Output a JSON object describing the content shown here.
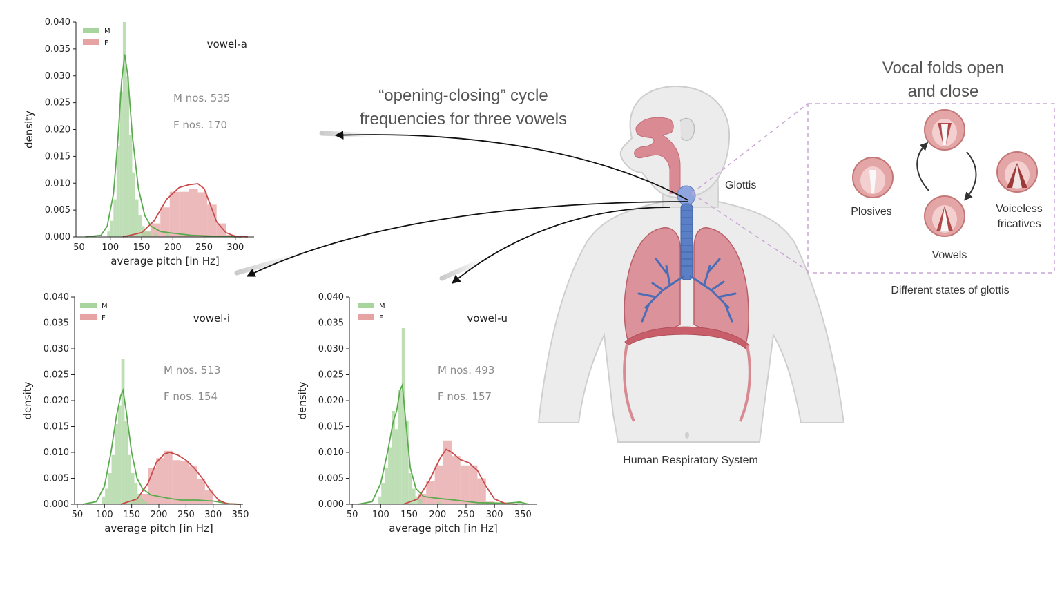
{
  "caption_cycle": [
    "“opening-closing” cycle",
    "frequencies for three vowels"
  ],
  "caption_folds": [
    "Vocal folds open",
    "and close"
  ],
  "labels": {
    "glottis": "Glottis",
    "system": "Human Respiratory System",
    "states_title": "Different states of glottis",
    "plosives": "Plosives",
    "vowels": "Vowels",
    "voiceless": [
      "Voiceless",
      "fricatives"
    ]
  },
  "colors": {
    "male": "#5aab4e",
    "female": "#c94a4a",
    "male_fill": "#a8d49e",
    "female_fill": "#e5a3a3",
    "body": "#e8e8e8",
    "airway": "#5b7fc4",
    "lung": "#cf6e78"
  },
  "chart_data": [
    {
      "type": "histogram+kde",
      "title": "vowel-a",
      "xlabel": "average pitch [in Hz]",
      "ylabel": "density",
      "xlim": [
        45,
        330
      ],
      "ylim": [
        0,
        0.04
      ],
      "xticks": [
        50,
        100,
        150,
        200,
        250,
        300
      ],
      "yticks": [
        "0.000",
        "0.005",
        "0.010",
        "0.015",
        "0.020",
        "0.025",
        "0.030",
        "0.035",
        "0.040"
      ],
      "legend": [
        "M",
        "F"
      ],
      "annotations": [
        "M nos. 535",
        "F nos. 170"
      ],
      "series": [
        {
          "name": "M",
          "bin_width": 5,
          "bins": [
            [
              95,
              0.001
            ],
            [
              100,
              0.003
            ],
            [
              105,
              0.007
            ],
            [
              110,
              0.017
            ],
            [
              115,
              0.027
            ],
            [
              120,
              0.04
            ],
            [
              125,
              0.03
            ],
            [
              130,
              0.019
            ],
            [
              135,
              0.012
            ],
            [
              140,
              0.007
            ],
            [
              145,
              0.004
            ],
            [
              150,
              0.002
            ],
            [
              155,
              0.001
            ],
            [
              160,
              0.001
            ],
            [
              170,
              0.0006
            ],
            [
              190,
              0.0008
            ],
            [
              210,
              0.0005
            ]
          ],
          "kde": [
            [
              60,
              0
            ],
            [
              85,
              0.0003
            ],
            [
              95,
              0.002
            ],
            [
              105,
              0.008
            ],
            [
              112,
              0.018
            ],
            [
              118,
              0.029
            ],
            [
              123,
              0.034
            ],
            [
              128,
              0.03
            ],
            [
              135,
              0.019
            ],
            [
              145,
              0.009
            ],
            [
              155,
              0.004
            ],
            [
              165,
              0.002
            ],
            [
              180,
              0.001
            ],
            [
              200,
              0.0007
            ],
            [
              230,
              0.0003
            ],
            [
              270,
              0.0001
            ],
            [
              310,
              0
            ]
          ]
        },
        {
          "name": "F",
          "bin_width": 15,
          "bins": [
            [
              150,
              0.001
            ],
            [
              165,
              0.0025
            ],
            [
              180,
              0.0055
            ],
            [
              195,
              0.0084
            ],
            [
              210,
              0.0084
            ],
            [
              225,
              0.009
            ],
            [
              240,
              0.0083
            ],
            [
              255,
              0.006
            ],
            [
              270,
              0.0025
            ],
            [
              285,
              0.0004
            ]
          ],
          "kde": [
            [
              120,
              0
            ],
            [
              150,
              0.0008
            ],
            [
              170,
              0.003
            ],
            [
              190,
              0.007
            ],
            [
              210,
              0.0092
            ],
            [
              225,
              0.0097
            ],
            [
              240,
              0.0099
            ],
            [
              250,
              0.009
            ],
            [
              260,
              0.006
            ],
            [
              270,
              0.0028
            ],
            [
              285,
              0.0008
            ],
            [
              300,
              0.0001
            ],
            [
              320,
              0
            ]
          ]
        }
      ]
    },
    {
      "type": "histogram+kde",
      "title": "vowel-i",
      "xlabel": "average pitch [in Hz]",
      "ylabel": "density",
      "xlim": [
        45,
        355
      ],
      "ylim": [
        0,
        0.04
      ],
      "xticks": [
        50,
        100,
        150,
        200,
        250,
        300,
        350
      ],
      "yticks": [
        "0.000",
        "0.005",
        "0.010",
        "0.015",
        "0.020",
        "0.025",
        "0.030",
        "0.035",
        "0.040"
      ],
      "legend": [
        "M",
        "F"
      ],
      "annotations": [
        "M nos. 513",
        "F nos. 154"
      ],
      "series": [
        {
          "name": "M",
          "bin_width": 6,
          "bins": [
            [
              95,
              0.0015
            ],
            [
              101,
              0.003
            ],
            [
              107,
              0.006
            ],
            [
              113,
              0.0095
            ],
            [
              119,
              0.0155
            ],
            [
              125,
              0.019
            ],
            [
              131,
              0.028
            ],
            [
              137,
              0.016
            ],
            [
              143,
              0.0095
            ],
            [
              149,
              0.006
            ],
            [
              155,
              0.004
            ],
            [
              161,
              0.002
            ],
            [
              167,
              0.001
            ],
            [
              173,
              0.0005
            ]
          ],
          "kde": [
            [
              60,
              0
            ],
            [
              85,
              0.0005
            ],
            [
              100,
              0.0035
            ],
            [
              112,
              0.01
            ],
            [
              122,
              0.017
            ],
            [
              130,
              0.021
            ],
            [
              134,
              0.022
            ],
            [
              140,
              0.018
            ],
            [
              150,
              0.01
            ],
            [
              160,
              0.005
            ],
            [
              170,
              0.003
            ],
            [
              185,
              0.0018
            ],
            [
              200,
              0.0015
            ],
            [
              215,
              0.0012
            ],
            [
              240,
              0.0008
            ],
            [
              270,
              0.0008
            ],
            [
              300,
              0.0006
            ],
            [
              330,
              0.0001
            ],
            [
              350,
              0
            ]
          ]
        },
        {
          "name": "F",
          "bin_width": 15,
          "bins": [
            [
              150,
              0.0009
            ],
            [
              165,
              0.002
            ],
            [
              180,
              0.007
            ],
            [
              195,
              0.0089
            ],
            [
              210,
              0.0103
            ],
            [
              225,
              0.0085
            ],
            [
              240,
              0.0083
            ],
            [
              255,
              0.0073
            ],
            [
              270,
              0.0049
            ],
            [
              285,
              0.0028
            ]
          ],
          "kde": [
            [
              130,
              0
            ],
            [
              160,
              0.001
            ],
            [
              180,
              0.004
            ],
            [
              195,
              0.008
            ],
            [
              210,
              0.0097
            ],
            [
              220,
              0.01
            ],
            [
              235,
              0.0095
            ],
            [
              250,
              0.0085
            ],
            [
              265,
              0.007
            ],
            [
              280,
              0.005
            ],
            [
              295,
              0.0026
            ],
            [
              310,
              0.0008
            ],
            [
              325,
              0.0001
            ],
            [
              350,
              0
            ]
          ]
        }
      ]
    },
    {
      "type": "histogram+kde",
      "title": "vowel-u",
      "xlabel": "average pitch [in Hz]",
      "ylabel": "density",
      "xlim": [
        45,
        375
      ],
      "ylim": [
        0,
        0.04
      ],
      "xticks": [
        50,
        100,
        150,
        200,
        250,
        300,
        350
      ],
      "yticks": [
        "0.000",
        "0.005",
        "0.010",
        "0.015",
        "0.020",
        "0.025",
        "0.030",
        "0.035",
        "0.040"
      ],
      "legend": [
        "M",
        "F"
      ],
      "annotations": [
        "M nos. 493",
        "F nos. 157"
      ],
      "series": [
        {
          "name": "M",
          "bin_width": 6,
          "bins": [
            [
              95,
              0.0015
            ],
            [
              101,
              0.004
            ],
            [
              107,
              0.007
            ],
            [
              113,
              0.011
            ],
            [
              119,
              0.018
            ],
            [
              125,
              0.0145
            ],
            [
              131,
              0.022
            ],
            [
              137,
              0.034
            ],
            [
              143,
              0.016
            ],
            [
              149,
              0.006
            ],
            [
              155,
              0.003
            ],
            [
              161,
              0.0015
            ],
            [
              167,
              0.001
            ],
            [
              200,
              0.0004
            ],
            [
              340,
              0.0006
            ]
          ],
          "kde": [
            [
              60,
              0
            ],
            [
              85,
              0.0005
            ],
            [
              100,
              0.004
            ],
            [
              112,
              0.01
            ],
            [
              122,
              0.016
            ],
            [
              128,
              0.018
            ],
            [
              134,
              0.022
            ],
            [
              138,
              0.023
            ],
            [
              144,
              0.016
            ],
            [
              152,
              0.007
            ],
            [
              162,
              0.003
            ],
            [
              175,
              0.0015
            ],
            [
              195,
              0.0012
            ],
            [
              230,
              0.0008
            ],
            [
              270,
              0.0003
            ],
            [
              320,
              0.0002
            ],
            [
              345,
              0.0004
            ],
            [
              360,
              0
            ]
          ]
        },
        {
          "name": "F",
          "bin_width": 15,
          "bins": [
            [
              165,
              0.002
            ],
            [
              180,
              0.0045
            ],
            [
              195,
              0.0075
            ],
            [
              210,
              0.0123
            ],
            [
              225,
              0.0093
            ],
            [
              240,
              0.0075
            ],
            [
              255,
              0.0075
            ],
            [
              270,
              0.005
            ],
            [
              285,
              0.0005
            ]
          ],
          "kde": [
            [
              140,
              0
            ],
            [
              165,
              0.001
            ],
            [
              185,
              0.0045
            ],
            [
              205,
              0.009
            ],
            [
              215,
              0.0106
            ],
            [
              225,
              0.01
            ],
            [
              240,
              0.0086
            ],
            [
              255,
              0.008
            ],
            [
              270,
              0.0065
            ],
            [
              285,
              0.0035
            ],
            [
              300,
              0.001
            ],
            [
              320,
              0.0001
            ],
            [
              340,
              0
            ]
          ]
        }
      ]
    }
  ]
}
